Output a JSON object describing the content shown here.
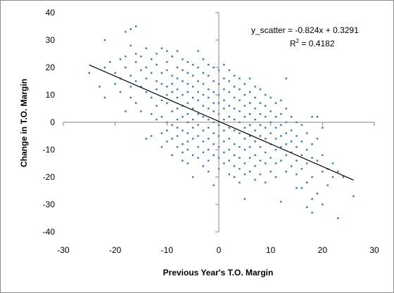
{
  "chart_data": {
    "type": "scatter",
    "title": "",
    "xlabel": "Previous Year's T.O. Margin",
    "ylabel": "Change in T.O. Margin",
    "xlim": [
      -30,
      30
    ],
    "ylim": [
      -40,
      40
    ],
    "xticks": [
      -30,
      -20,
      -10,
      0,
      10,
      20,
      30
    ],
    "yticks": [
      -40,
      -30,
      -20,
      -10,
      0,
      10,
      20,
      30,
      40
    ],
    "xtick_labels": [
      "-30",
      "-20",
      "-10",
      "0",
      "10",
      "20",
      "30"
    ],
    "ytick_labels": [
      "-40",
      "-30",
      "-20",
      "-10",
      "0",
      "10",
      "20",
      "30",
      "40"
    ],
    "grid": false,
    "legend": "none",
    "marker_color": "#2e75b6",
    "trendline": {
      "slope": -0.824,
      "intercept": 0.3291,
      "x_range": [
        -25,
        26
      ],
      "color": "#000000",
      "equation": "y_scatter = -0.824x + 0.3291",
      "r2_prefix": "R",
      "r2_sup": "2",
      "r2_value": " = 0.4182"
    },
    "points": [
      [
        -25,
        18
      ],
      [
        -23,
        13
      ],
      [
        -22,
        30
      ],
      [
        -22,
        20
      ],
      [
        -22,
        9
      ],
      [
        -21,
        22
      ],
      [
        -20,
        18
      ],
      [
        -20,
        14
      ],
      [
        -19,
        23
      ],
      [
        -19,
        16
      ],
      [
        -19,
        11
      ],
      [
        -18,
        33
      ],
      [
        -18,
        24
      ],
      [
        -18,
        20
      ],
      [
        -18,
        4
      ],
      [
        -17,
        34
      ],
      [
        -17,
        28
      ],
      [
        -17,
        17
      ],
      [
        -17,
        13
      ],
      [
        -17,
        9
      ],
      [
        -16,
        35
      ],
      [
        -16,
        25
      ],
      [
        -16,
        22
      ],
      [
        -16,
        15
      ],
      [
        -16,
        7
      ],
      [
        -15,
        24
      ],
      [
        -15,
        19
      ],
      [
        -15,
        13
      ],
      [
        -15,
        4
      ],
      [
        -14,
        27
      ],
      [
        -14,
        20
      ],
      [
        -14,
        16
      ],
      [
        -14,
        11
      ],
      [
        -14,
        -6
      ],
      [
        -13,
        23
      ],
      [
        -13,
        18
      ],
      [
        -13,
        9
      ],
      [
        -13,
        3
      ],
      [
        -13,
        -5
      ],
      [
        -12,
        25
      ],
      [
        -12,
        21
      ],
      [
        -12,
        15
      ],
      [
        -12,
        12
      ],
      [
        -12,
        6
      ],
      [
        -12,
        1
      ],
      [
        -11,
        27
      ],
      [
        -11,
        18
      ],
      [
        -11,
        14
      ],
      [
        -11,
        8
      ],
      [
        -11,
        2
      ],
      [
        -11,
        -4
      ],
      [
        -11,
        -9
      ],
      [
        -10,
        26
      ],
      [
        -10,
        22
      ],
      [
        -10,
        19
      ],
      [
        -10,
        13
      ],
      [
        -10,
        10
      ],
      [
        -10,
        7
      ],
      [
        -10,
        0
      ],
      [
        -10,
        -3
      ],
      [
        -10,
        -7
      ],
      [
        -9,
        24
      ],
      [
        -9,
        17
      ],
      [
        -9,
        14
      ],
      [
        -9,
        11
      ],
      [
        -9,
        4
      ],
      [
        -9,
        -1
      ],
      [
        -9,
        -6
      ],
      [
        -9,
        -12
      ],
      [
        -8,
        26
      ],
      [
        -8,
        20
      ],
      [
        -8,
        16
      ],
      [
        -8,
        12
      ],
      [
        -8,
        9
      ],
      [
        -8,
        5
      ],
      [
        -8,
        1
      ],
      [
        -8,
        -2
      ],
      [
        -8,
        -5
      ],
      [
        -8,
        -9
      ],
      [
        -7,
        23
      ],
      [
        -7,
        19
      ],
      [
        -7,
        15
      ],
      [
        -7,
        10
      ],
      [
        -7,
        6
      ],
      [
        -7,
        2
      ],
      [
        -7,
        -3
      ],
      [
        -7,
        -8
      ],
      [
        -7,
        -11
      ],
      [
        -7,
        -14
      ],
      [
        -6,
        22
      ],
      [
        -6,
        18
      ],
      [
        -6,
        14
      ],
      [
        -6,
        11
      ],
      [
        -6,
        7
      ],
      [
        -6,
        3
      ],
      [
        -6,
        0
      ],
      [
        -6,
        -4
      ],
      [
        -6,
        -7
      ],
      [
        -6,
        -10
      ],
      [
        -6,
        -15
      ],
      [
        -5,
        21
      ],
      [
        -5,
        17
      ],
      [
        -5,
        13
      ],
      [
        -5,
        9
      ],
      [
        -5,
        5
      ],
      [
        -5,
        1
      ],
      [
        -5,
        -2
      ],
      [
        -5,
        -6
      ],
      [
        -5,
        -12
      ],
      [
        -5,
        -20
      ],
      [
        -4,
        26
      ],
      [
        -4,
        20
      ],
      [
        -4,
        15
      ],
      [
        -4,
        11
      ],
      [
        -4,
        8
      ],
      [
        -4,
        3
      ],
      [
        -4,
        -1
      ],
      [
        -4,
        -5
      ],
      [
        -4,
        -9
      ],
      [
        -4,
        -13
      ],
      [
        -3,
        23
      ],
      [
        -3,
        18
      ],
      [
        -3,
        14
      ],
      [
        -3,
        10
      ],
      [
        -3,
        6
      ],
      [
        -3,
        2
      ],
      [
        -3,
        -3
      ],
      [
        -3,
        -7
      ],
      [
        -3,
        -11
      ],
      [
        -3,
        -16
      ],
      [
        -2,
        21
      ],
      [
        -2,
        17
      ],
      [
        -2,
        12
      ],
      [
        -2,
        9
      ],
      [
        -2,
        5
      ],
      [
        -2,
        1
      ],
      [
        -2,
        -2
      ],
      [
        -2,
        -6
      ],
      [
        -2,
        -10
      ],
      [
        -2,
        -14
      ],
      [
        -2,
        -18
      ],
      [
        -1,
        20
      ],
      [
        -1,
        15
      ],
      [
        -1,
        11
      ],
      [
        -1,
        7
      ],
      [
        -1,
        4
      ],
      [
        -1,
        0
      ],
      [
        -1,
        -4
      ],
      [
        -1,
        -8
      ],
      [
        -1,
        -12
      ],
      [
        -1,
        -23
      ],
      [
        0,
        19
      ],
      [
        0,
        14
      ],
      [
        0,
        10
      ],
      [
        0,
        7
      ],
      [
        0,
        3
      ],
      [
        0,
        -1
      ],
      [
        0,
        -5
      ],
      [
        0,
        -9
      ],
      [
        0,
        -13
      ],
      [
        0,
        -17
      ],
      [
        1,
        21
      ],
      [
        1,
        16
      ],
      [
        1,
        12
      ],
      [
        1,
        8
      ],
      [
        1,
        5
      ],
      [
        1,
        1
      ],
      [
        1,
        -3
      ],
      [
        1,
        -7
      ],
      [
        1,
        -11
      ],
      [
        1,
        -15
      ],
      [
        2,
        19
      ],
      [
        2,
        15
      ],
      [
        2,
        11
      ],
      [
        2,
        6
      ],
      [
        2,
        2
      ],
      [
        2,
        -2
      ],
      [
        2,
        -6
      ],
      [
        2,
        -10
      ],
      [
        2,
        -14
      ],
      [
        2,
        -19
      ],
      [
        3,
        17
      ],
      [
        3,
        13
      ],
      [
        3,
        9
      ],
      [
        3,
        5
      ],
      [
        3,
        1
      ],
      [
        3,
        -3
      ],
      [
        3,
        -8
      ],
      [
        3,
        -12
      ],
      [
        3,
        -16
      ],
      [
        3,
        -20
      ],
      [
        4,
        16
      ],
      [
        4,
        12
      ],
      [
        4,
        8
      ],
      [
        4,
        4
      ],
      [
        4,
        0
      ],
      [
        4,
        -4
      ],
      [
        4,
        -9
      ],
      [
        4,
        -13
      ],
      [
        4,
        -17
      ],
      [
        4,
        -22
      ],
      [
        5,
        14
      ],
      [
        5,
        10
      ],
      [
        5,
        6
      ],
      [
        5,
        2
      ],
      [
        5,
        -2
      ],
      [
        5,
        -6
      ],
      [
        5,
        -10
      ],
      [
        5,
        -15
      ],
      [
        5,
        -19
      ],
      [
        5,
        -28
      ],
      [
        6,
        16
      ],
      [
        6,
        11
      ],
      [
        6,
        7
      ],
      [
        6,
        3
      ],
      [
        6,
        -1
      ],
      [
        6,
        -5
      ],
      [
        6,
        -9
      ],
      [
        6,
        -13
      ],
      [
        6,
        -18
      ],
      [
        7,
        13
      ],
      [
        7,
        9
      ],
      [
        7,
        5
      ],
      [
        7,
        1
      ],
      [
        7,
        -3
      ],
      [
        7,
        -7
      ],
      [
        7,
        -12
      ],
      [
        7,
        -16
      ],
      [
        7,
        -21
      ],
      [
        8,
        12
      ],
      [
        8,
        7
      ],
      [
        8,
        3
      ],
      [
        8,
        -1
      ],
      [
        8,
        -5
      ],
      [
        8,
        -9
      ],
      [
        8,
        -14
      ],
      [
        8,
        -19
      ],
      [
        9,
        10
      ],
      [
        9,
        6
      ],
      [
        9,
        2
      ],
      [
        9,
        -2
      ],
      [
        9,
        -6
      ],
      [
        9,
        -11
      ],
      [
        9,
        -15
      ],
      [
        9,
        -22
      ],
      [
        10,
        9
      ],
      [
        10,
        4
      ],
      [
        10,
        0
      ],
      [
        10,
        -4
      ],
      [
        10,
        -8
      ],
      [
        10,
        -13
      ],
      [
        10,
        -18
      ],
      [
        11,
        7
      ],
      [
        11,
        2
      ],
      [
        11,
        -2
      ],
      [
        11,
        -6
      ],
      [
        11,
        -10
      ],
      [
        11,
        -15
      ],
      [
        11,
        -20
      ],
      [
        12,
        8
      ],
      [
        12,
        3
      ],
      [
        12,
        -1
      ],
      [
        12,
        -5
      ],
      [
        12,
        -9
      ],
      [
        12,
        -14
      ],
      [
        12,
        -29
      ],
      [
        13,
        16
      ],
      [
        13,
        5
      ],
      [
        13,
        0
      ],
      [
        13,
        -4
      ],
      [
        13,
        -8
      ],
      [
        13,
        -12
      ],
      [
        13,
        -18
      ],
      [
        14,
        2
      ],
      [
        14,
        -3
      ],
      [
        14,
        -7
      ],
      [
        14,
        -11
      ],
      [
        14,
        -16
      ],
      [
        15,
        0
      ],
      [
        15,
        -5
      ],
      [
        15,
        -9
      ],
      [
        15,
        -14
      ],
      [
        15,
        -19
      ],
      [
        15,
        -24
      ],
      [
        16,
        -1
      ],
      [
        16,
        -7
      ],
      [
        16,
        -12
      ],
      [
        16,
        -17
      ],
      [
        16,
        -24
      ],
      [
        17,
        -4
      ],
      [
        17,
        -10
      ],
      [
        17,
        -15
      ],
      [
        17,
        -22
      ],
      [
        17,
        -31
      ],
      [
        18,
        2
      ],
      [
        18,
        -8
      ],
      [
        18,
        -13
      ],
      [
        18,
        -20
      ],
      [
        18,
        -28
      ],
      [
        18,
        -33
      ],
      [
        19,
        2
      ],
      [
        19,
        -6
      ],
      [
        19,
        -14
      ],
      [
        19,
        -26
      ],
      [
        20,
        -2
      ],
      [
        20,
        -12
      ],
      [
        20,
        -18
      ],
      [
        20,
        -30
      ],
      [
        21,
        -17
      ],
      [
        21,
        -23
      ],
      [
        22,
        -15
      ],
      [
        22,
        -20
      ],
      [
        23,
        -18
      ],
      [
        23,
        -35
      ],
      [
        24,
        -20
      ],
      [
        26,
        -27
      ]
    ]
  }
}
